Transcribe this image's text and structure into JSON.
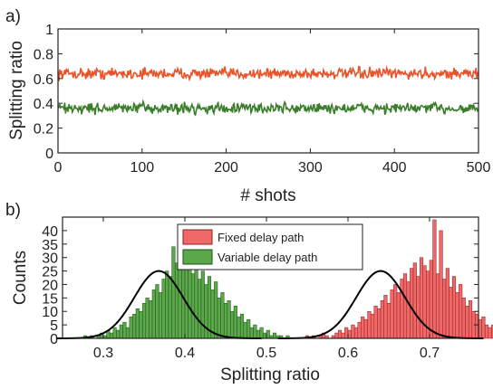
{
  "chart_data": [
    {
      "panel_label": "a)",
      "type": "line",
      "xlabel": "# shots",
      "ylabel": "Splitting ratio",
      "xlim": [
        0,
        500
      ],
      "ylim": [
        0,
        1
      ],
      "xticks": [
        "0",
        "100",
        "200",
        "300",
        "400",
        "500"
      ],
      "yticks": [
        "0",
        "0.2",
        "0.4",
        "0.6",
        "0.8",
        "1"
      ],
      "grid": false,
      "series": [
        {
          "color": "#e8532a",
          "mean": 0.64,
          "noise_pp": 0.08,
          "n_points": 500
        },
        {
          "color": "#3a7d2a",
          "mean": 0.36,
          "noise_pp": 0.08,
          "n_points": 500
        }
      ]
    },
    {
      "panel_label": "b)",
      "type": "bar",
      "xlabel": "Splitting ratio",
      "ylabel": "Counts",
      "xlim": [
        0.25,
        0.76
      ],
      "ylim": [
        0,
        45
      ],
      "xticks": [
        "0.3",
        "0.4",
        "0.5",
        "0.6",
        "0.7"
      ],
      "yticks": [
        "0",
        "5",
        "10",
        "15",
        "20",
        "25",
        "30",
        "35",
        "40"
      ],
      "legend_position": "top-center",
      "bin_width": 0.004,
      "series": [
        {
          "name": "Fixed delay path",
          "color": "#f06868",
          "edge": "#8a2020",
          "start": 0.548,
          "values": [
            1,
            0,
            1,
            0,
            1,
            2,
            1,
            0,
            1,
            2,
            3,
            2,
            4,
            3,
            5,
            4,
            6,
            8,
            7,
            10,
            9,
            12,
            11,
            14,
            16,
            13,
            18,
            20,
            17,
            22,
            24,
            21,
            26,
            28,
            23,
            30,
            27,
            25,
            29,
            44,
            24,
            40,
            22,
            26,
            19,
            23,
            17,
            20,
            15,
            12,
            14,
            10,
            9,
            7,
            8,
            5,
            4,
            5,
            3,
            2,
            3,
            1,
            2,
            1,
            1,
            0,
            1
          ]
        },
        {
          "name": "Variable delay path",
          "color": "#5aa84a",
          "edge": "#1f4f17",
          "start": 0.276,
          "values": [
            1,
            0,
            1,
            0,
            1,
            2,
            1,
            3,
            2,
            4,
            3,
            5,
            6,
            4,
            8,
            9,
            11,
            10,
            13,
            15,
            14,
            18,
            20,
            17,
            22,
            25,
            23,
            34,
            28,
            32,
            26,
            30,
            27,
            24,
            31,
            22,
            25,
            20,
            23,
            18,
            21,
            15,
            17,
            13,
            14,
            10,
            12,
            8,
            9,
            6,
            7,
            4,
            5,
            3,
            4,
            2,
            3,
            1,
            2,
            1,
            1,
            0,
            1
          ]
        }
      ],
      "fits": [
        {
          "color": "#000000",
          "mu": 0.64,
          "sigma": 0.03,
          "amp": 25
        },
        {
          "color": "#000000",
          "mu": 0.368,
          "sigma": 0.03,
          "amp": 25
        }
      ]
    }
  ]
}
